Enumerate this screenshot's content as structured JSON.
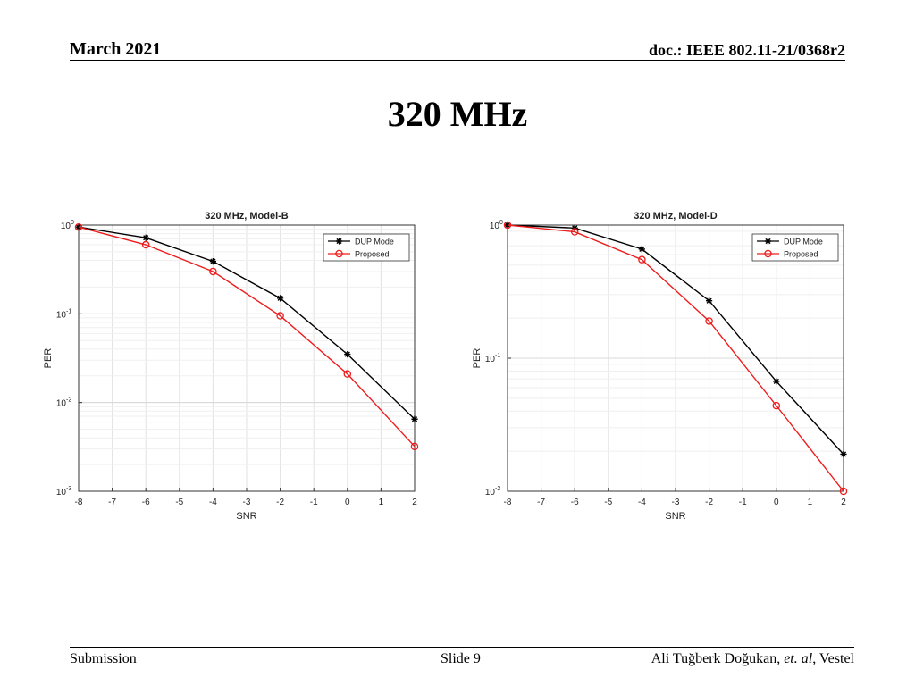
{
  "header": {
    "date": "March 2021",
    "doc": "doc.: IEEE 802.11-21/0368r2"
  },
  "slide_title": "320 MHz",
  "footer": {
    "left": "Submission",
    "center": "Slide 9",
    "author": "Ali Tuğberk Doğukan, ",
    "etal": "et. al",
    "affiliation": ", Vestel"
  },
  "chart_data": [
    {
      "type": "line",
      "title": "320 MHz, Model-B",
      "xlabel": "SNR",
      "ylabel": "PER",
      "yscale": "log",
      "grid": true,
      "legend_position": "top-right",
      "xlim": [
        -8,
        2
      ],
      "xticks": [
        -8,
        -7,
        -6,
        -5,
        -4,
        -3,
        -2,
        -1,
        0,
        1,
        2
      ],
      "ylim": [
        0.001,
        1
      ],
      "yticks": [
        {
          "value": 1,
          "base": "10",
          "exp": "0"
        },
        {
          "value": 0.1,
          "base": "10",
          "exp": "-1"
        },
        {
          "value": 0.01,
          "base": "10",
          "exp": "-2"
        },
        {
          "value": 0.001,
          "base": "10",
          "exp": "-3"
        }
      ],
      "series": [
        {
          "name": "DUP Mode",
          "color": "#000000",
          "marker": "asterisk",
          "x": [
            -8,
            -6,
            -4,
            -2,
            0,
            2
          ],
          "values": [
            0.95,
            0.72,
            0.39,
            0.15,
            0.035,
            0.0065
          ]
        },
        {
          "name": "Proposed",
          "color": "#ee1c1c",
          "marker": "circle",
          "x": [
            -8,
            -6,
            -4,
            -2,
            0,
            2
          ],
          "values": [
            0.95,
            0.6,
            0.3,
            0.095,
            0.021,
            0.0032
          ]
        }
      ]
    },
    {
      "type": "line",
      "title": "320 MHz, Model-D",
      "xlabel": "SNR",
      "ylabel": "PER",
      "yscale": "log",
      "grid": true,
      "legend_position": "top-right",
      "xlim": [
        -8,
        2
      ],
      "xticks": [
        -8,
        -7,
        -6,
        -5,
        -4,
        -3,
        -2,
        -1,
        0,
        1,
        2
      ],
      "ylim": [
        0.01,
        1
      ],
      "yticks": [
        {
          "value": 1,
          "base": "10",
          "exp": "0"
        },
        {
          "value": 0.1,
          "base": "10",
          "exp": "-1"
        },
        {
          "value": 0.01,
          "base": "10",
          "exp": "-2"
        }
      ],
      "series": [
        {
          "name": "DUP Mode",
          "color": "#000000",
          "marker": "asterisk",
          "x": [
            -8,
            -6,
            -4,
            -2,
            0,
            2
          ],
          "values": [
            1.0,
            0.95,
            0.66,
            0.27,
            0.067,
            0.019
          ]
        },
        {
          "name": "Proposed",
          "color": "#ee1c1c",
          "marker": "circle",
          "x": [
            -8,
            -6,
            -4,
            -2,
            0,
            2
          ],
          "values": [
            1.0,
            0.89,
            0.55,
            0.19,
            0.044,
            0.01
          ]
        }
      ]
    }
  ]
}
